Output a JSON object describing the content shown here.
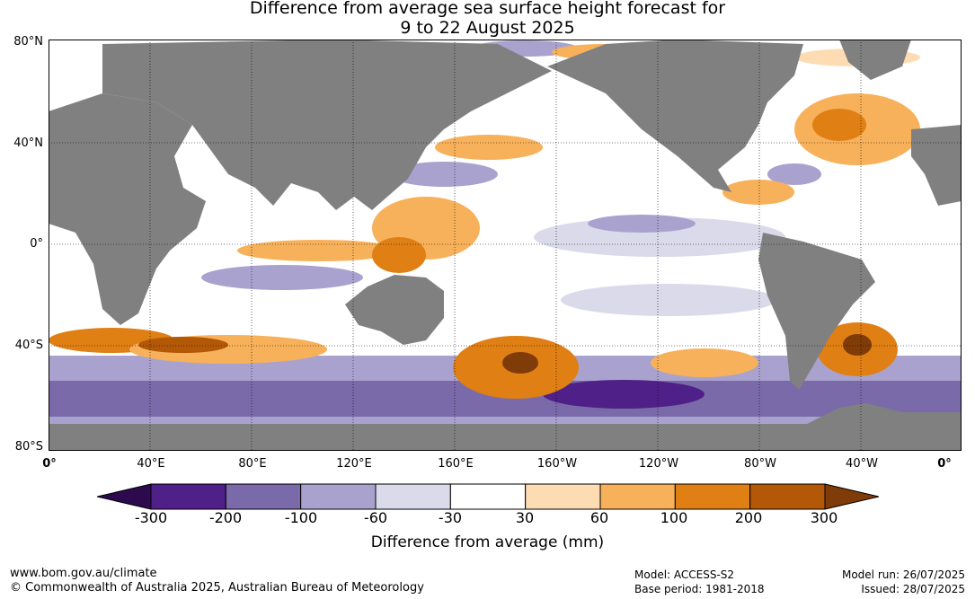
{
  "title": {
    "line1": "Difference from average sea surface height forecast for",
    "line2": "9 to 22 August 2025"
  },
  "map": {
    "lat_labels": [
      "80°N",
      "40°N",
      "0°",
      "40°S",
      "80°S"
    ],
    "lon_labels": [
      "0°",
      "40°E",
      "80°E",
      "120°E",
      "160°E",
      "160°W",
      "120°W",
      "80°W",
      "40°W",
      "0°"
    ],
    "land_color": "#808080",
    "ocean_base_color": "#ffffff"
  },
  "colorbar": {
    "title": "Difference from average (mm)",
    "ticks": [
      "-300",
      "-200",
      "-100",
      "-60",
      "-30",
      "30",
      "60",
      "100",
      "200",
      "300"
    ],
    "colors": {
      "below_min": "#2d0a4e",
      "bins": [
        "#4f2088",
        "#7b6aa9",
        "#aaa2ce",
        "#dadaeb",
        "#ffffff",
        "#fddcb3",
        "#f7b15a",
        "#df7f14",
        "#b25807"
      ],
      "above_max": "#7f3b08"
    }
  },
  "footer": {
    "website": "www.bom.gov.au/climate",
    "copyright": "© Commonwealth of Australia 2025, Australian Bureau of Meteorology",
    "model": "Model: ACCESS-S2",
    "base_period": "Base period: 1981-2018",
    "model_run": "Model run: 26/07/2025",
    "issued": "Issued: 28/07/2025"
  }
}
